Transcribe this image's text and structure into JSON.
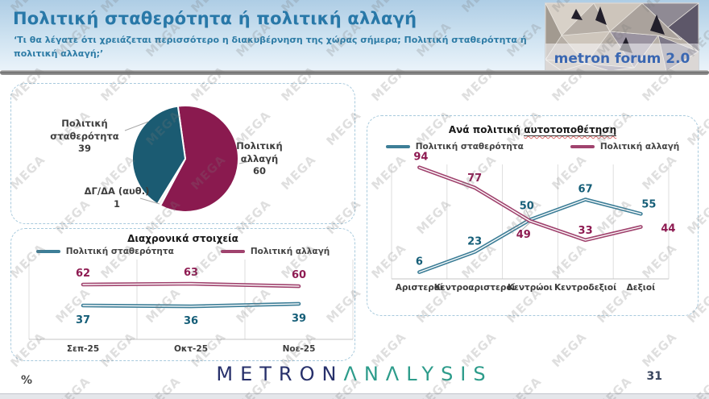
{
  "header": {
    "title": "Πολιτική σταθερότητα ή πολιτική αλλαγή",
    "subtitle": "‘Τι θα λέγατε ότι χρειάζεται περισσότερο η διακυβέρνηση της χώρας σήμερα; Πολιτική σταθερότητα ή πολιτική αλλαγή;’",
    "logo_text": "metron forum 2.0"
  },
  "watermark": "MEGA",
  "colors": {
    "title": "#2878a8",
    "stability_fill": "#1b5b72",
    "change_fill": "#8a1a4f",
    "stability_line": "#3d7e97",
    "change_line": "#a0436e",
    "stability_label": "#155e78",
    "change_label": "#8e1b52",
    "grid": "#dedede"
  },
  "chart_data": [
    {
      "type": "pie",
      "start_angle_deg": -8,
      "slices": [
        {
          "label": "Πολιτική αλλαγή",
          "label_lines": [
            "Πολιτική",
            "αλλαγή"
          ],
          "value": 60,
          "color": "#8a1a4f"
        },
        {
          "label": "ΔΓ/ΔΑ (αυθ.)",
          "label_lines": [
            "ΔΓ/ΔΑ (αυθ.)"
          ],
          "value": 1,
          "color": "#f2f2f2"
        },
        {
          "label": "Πολιτική σταθερότητα",
          "label_lines": [
            "Πολιτική",
            "σταθερότητα"
          ],
          "value": 39,
          "color": "#1b5b72"
        }
      ]
    },
    {
      "type": "line",
      "title": "Διαχρονικά στοιχεία",
      "categories": [
        "Σεπ-25",
        "Οκτ-25",
        "Νοε-25"
      ],
      "series": [
        {
          "name": "Πολιτική σταθερότητα",
          "values": [
            37,
            36,
            39
          ],
          "color": "#3d7e97",
          "label_color": "#155e78"
        },
        {
          "name": "Πολιτική αλλαγή",
          "values": [
            62,
            63,
            60
          ],
          "color": "#a0436e",
          "label_color": "#8e1b52"
        }
      ],
      "ylim": [
        0,
        100
      ],
      "legend_position": "top",
      "grid": "vertical"
    },
    {
      "type": "line",
      "title": "Ανά πολιτική αυτοτοποθέτηση",
      "title_plain": "Ανά πολιτική ",
      "title_underlined": "αυτοτοποθέτηση",
      "categories": [
        "Αριστεροί",
        "Κεντροαριστεροί",
        "Κεντρώοι",
        "Κεντροδεξιοί",
        "Δεξιοί"
      ],
      "series": [
        {
          "name": "Πολιτική σταθερότητα",
          "values": [
            6,
            23,
            50,
            67,
            55
          ],
          "color": "#3d7e97",
          "label_color": "#155e78"
        },
        {
          "name": "Πολιτική αλλαγή",
          "values": [
            94,
            77,
            49,
            33,
            44
          ],
          "color": "#a0436e",
          "label_color": "#8e1b52"
        }
      ],
      "ylim": [
        0,
        100
      ],
      "legend_position": "top",
      "grid": "vertical"
    }
  ],
  "footer": {
    "brand_metron": "METRON",
    "brand_analysis": "ANALYSIS",
    "percent_label": "%",
    "page_number": "31"
  }
}
